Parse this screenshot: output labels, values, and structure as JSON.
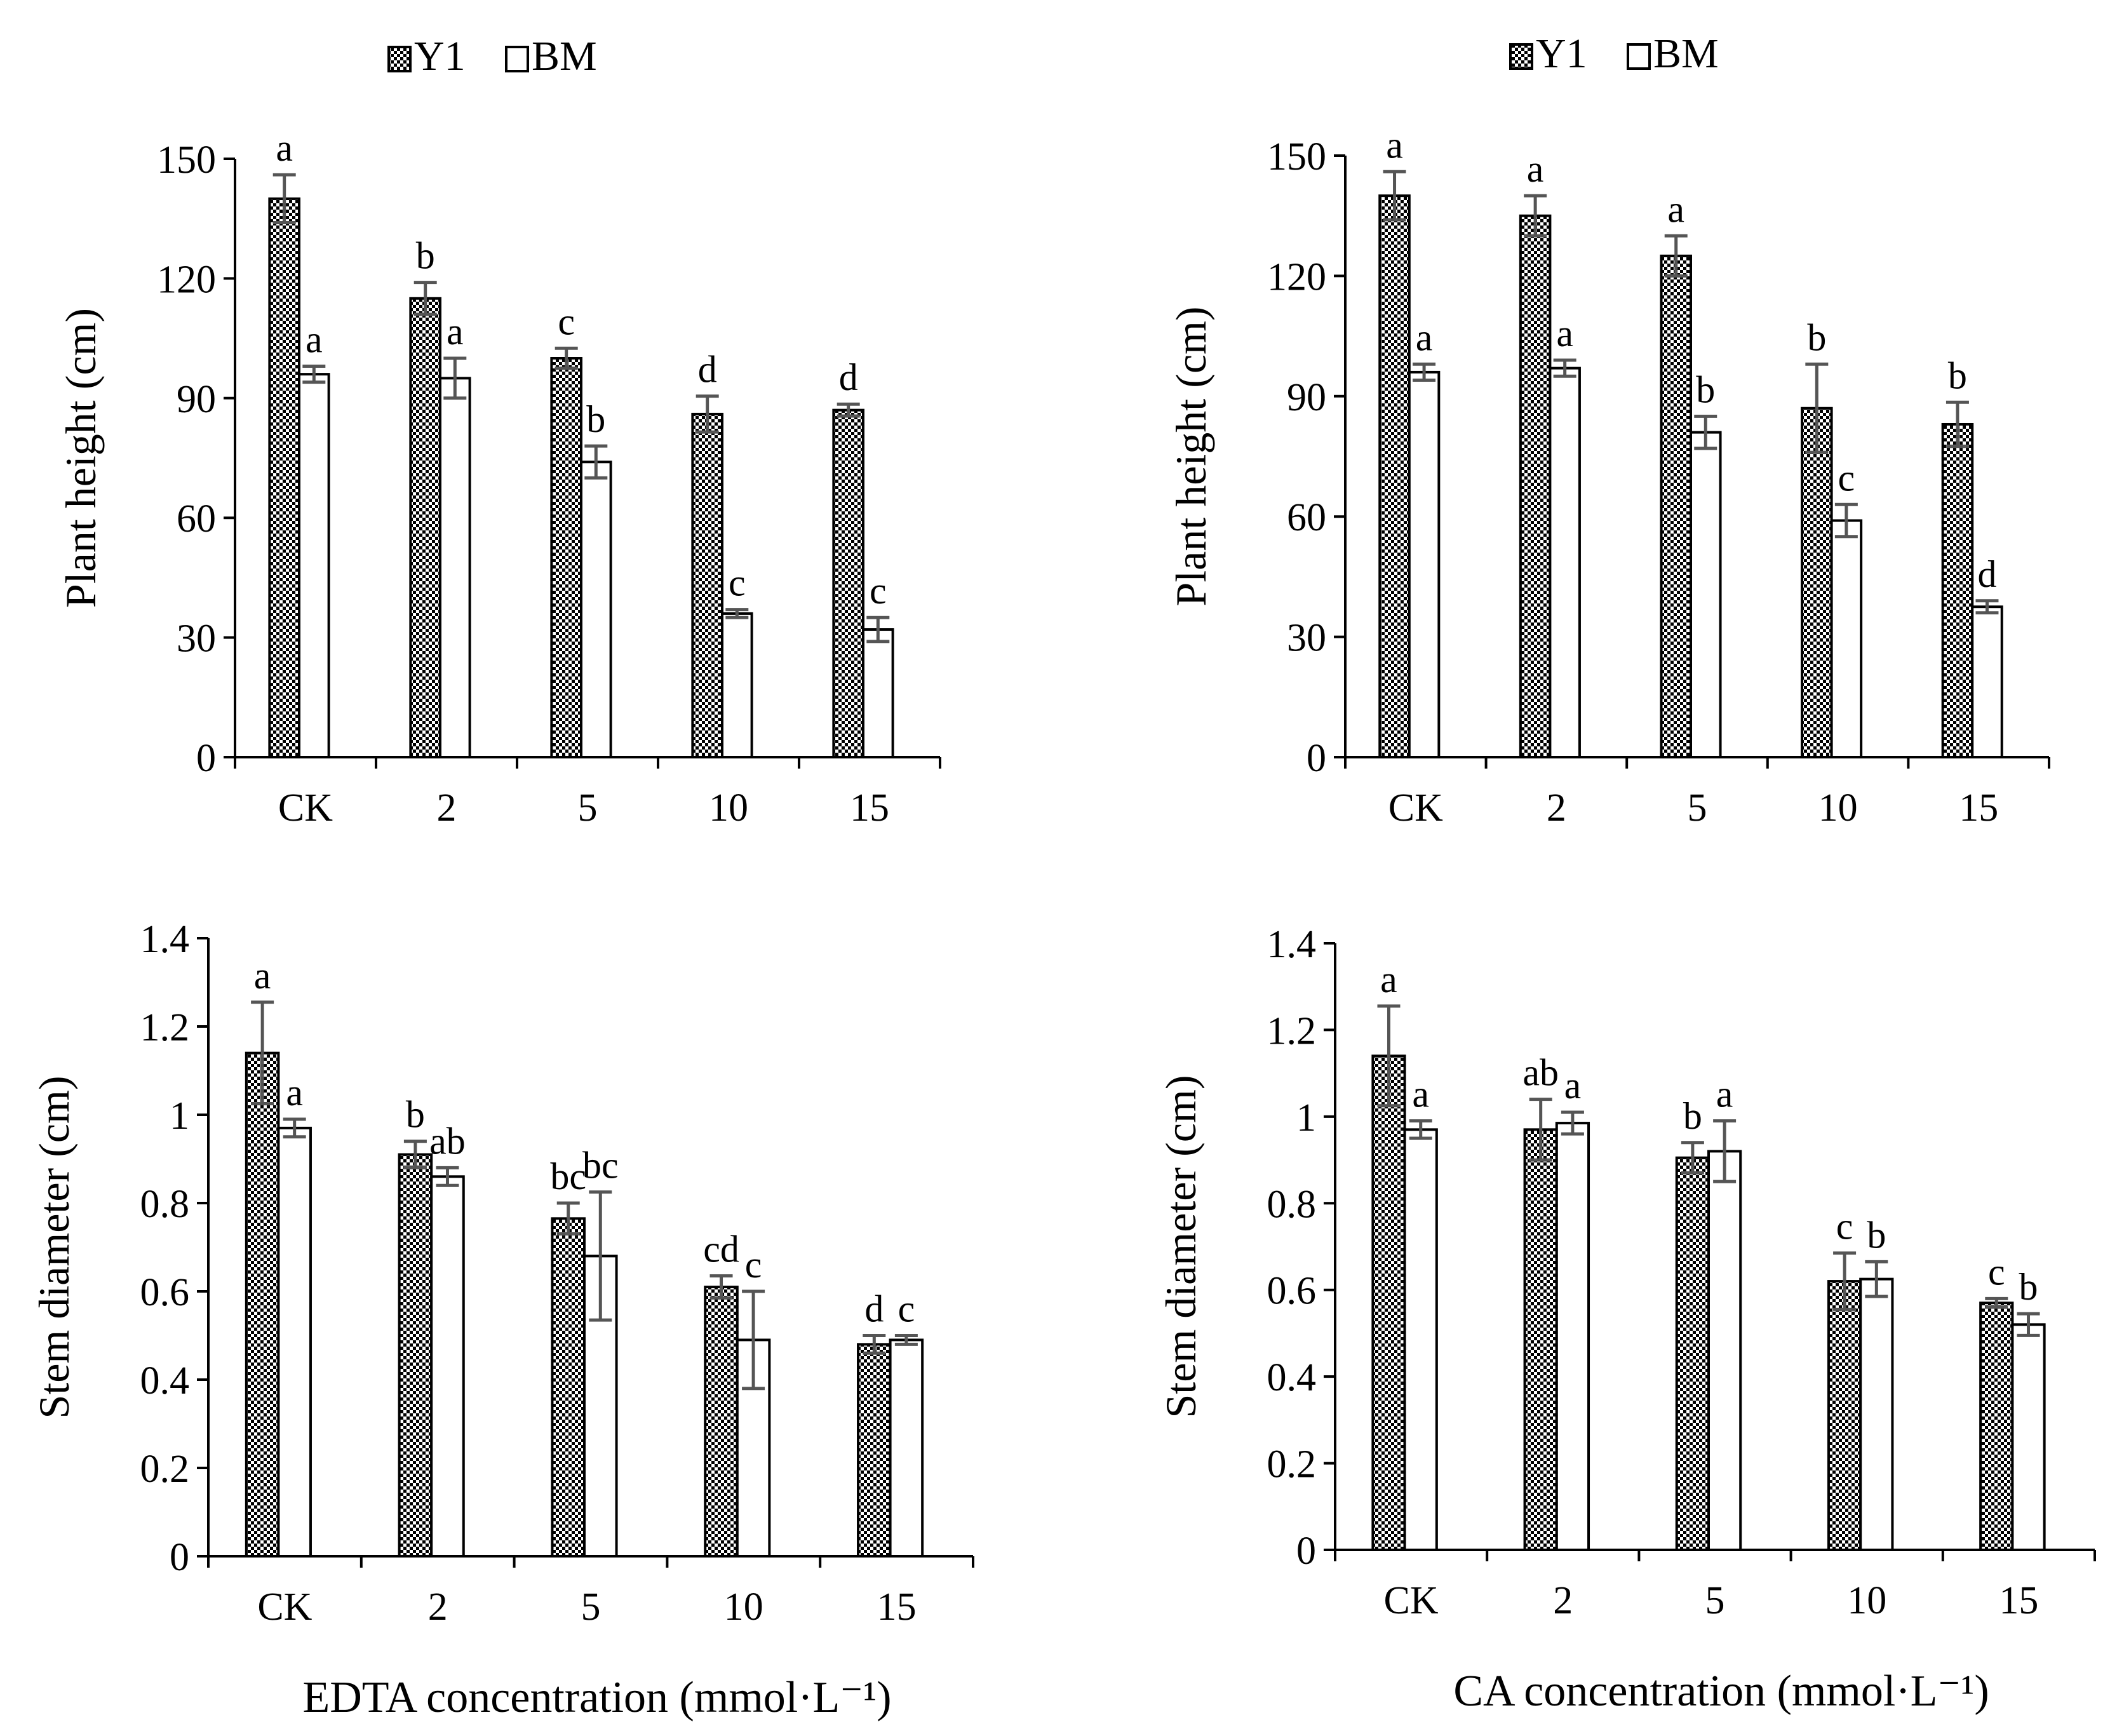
{
  "legend": {
    "series": [
      {
        "name": "Y1",
        "pattern": "dotted"
      },
      {
        "name": "BM",
        "pattern": "white"
      }
    ]
  },
  "colors": {
    "bar_edge": "#000000",
    "error_bar": "#555555",
    "dot_fill": "#000000",
    "background": "#ffffff"
  },
  "chart_data": [
    {
      "id": "edta-height",
      "type": "bar",
      "categories": [
        "CK",
        "2",
        "5",
        "10",
        "15"
      ],
      "ylabel": "Plant height  (cm)",
      "xlabel": "",
      "ylim": [
        0,
        150
      ],
      "yticks": [
        0,
        30,
        60,
        90,
        120,
        150
      ],
      "ytick_labels": [
        "0",
        "30",
        "60",
        "90",
        "120",
        "150"
      ],
      "series": [
        {
          "name": "Y1",
          "values": [
            140,
            115,
            100,
            86,
            87
          ],
          "errors": [
            6,
            4,
            2.5,
            4.5,
            1.5
          ],
          "labels": [
            "a",
            "b",
            "c",
            "d",
            "d"
          ]
        },
        {
          "name": "BM",
          "values": [
            96,
            95,
            74,
            36,
            32
          ],
          "errors": [
            2,
            5,
            4,
            1,
            3
          ],
          "labels": [
            "a",
            "a",
            "b",
            "c",
            "c"
          ]
        }
      ]
    },
    {
      "id": "ca-height",
      "type": "bar",
      "categories": [
        "CK",
        "2",
        "5",
        "10",
        "15"
      ],
      "ylabel": "Plant height (cm)",
      "xlabel": "",
      "ylim": [
        0,
        150
      ],
      "yticks": [
        0,
        30,
        60,
        90,
        120,
        150
      ],
      "ytick_labels": [
        "0",
        "30",
        "60",
        "90",
        "120",
        "150"
      ],
      "series": [
        {
          "name": "Y1",
          "values": [
            140,
            135,
            125,
            87,
            83
          ],
          "errors": [
            6,
            5,
            5,
            11,
            5.5
          ],
          "labels": [
            "a",
            "a",
            "a",
            "b",
            "b"
          ]
        },
        {
          "name": "BM",
          "values": [
            96,
            97,
            81,
            59,
            37.5
          ],
          "errors": [
            2,
            2,
            4,
            4,
            1.5
          ],
          "labels": [
            "a",
            "a",
            "b",
            "c",
            "d"
          ]
        }
      ]
    },
    {
      "id": "edta-diameter",
      "type": "bar",
      "categories": [
        "CK",
        "2",
        "5",
        "10",
        "15"
      ],
      "ylabel": "Stem diameter (cm)",
      "xlabel": "EDTA  concentration  (mmol·L⁻¹)",
      "ylim": [
        0,
        1.4
      ],
      "yticks": [
        0,
        0.2,
        0.4,
        0.6,
        0.8,
        1.0,
        1.2,
        1.4
      ],
      "ytick_labels": [
        "0",
        "0.2",
        "0.4",
        "0.6",
        "0.8",
        "1",
        "1.2",
        "1.4"
      ],
      "series": [
        {
          "name": "Y1",
          "values": [
            1.14,
            0.91,
            0.765,
            0.61,
            0.48
          ],
          "errors": [
            0.115,
            0.03,
            0.035,
            0.025,
            0.02
          ],
          "labels": [
            "a",
            "b",
            "bc",
            "cd",
            "d"
          ]
        },
        {
          "name": "BM",
          "values": [
            0.97,
            0.86,
            0.68,
            0.49,
            0.49
          ],
          "errors": [
            0.02,
            0.02,
            0.145,
            0.11,
            0.01
          ],
          "labels": [
            "a",
            "ab",
            "bc",
            "c",
            "c"
          ]
        }
      ]
    },
    {
      "id": "ca-diameter",
      "type": "bar",
      "categories": [
        "CK",
        "2",
        "5",
        "10",
        "15"
      ],
      "ylabel": "Stem diameter (cm)",
      "xlabel": "CA concentration  (mmol·L⁻¹)",
      "ylim": [
        0,
        1.4
      ],
      "yticks": [
        0,
        0.2,
        0.4,
        0.6,
        0.8,
        1.0,
        1.2,
        1.4
      ],
      "ytick_labels": [
        "0",
        "0.2",
        "0.4",
        "0.6",
        "0.8",
        "1",
        "1.2",
        "1.4"
      ],
      "series": [
        {
          "name": "Y1",
          "values": [
            1.14,
            0.97,
            0.905,
            0.62,
            0.57
          ],
          "errors": [
            0.115,
            0.07,
            0.035,
            0.065,
            0.01
          ],
          "labels": [
            "a",
            "ab",
            "b",
            "c",
            "c"
          ]
        },
        {
          "name": "BM",
          "values": [
            0.97,
            0.985,
            0.92,
            0.625,
            0.52
          ],
          "errors": [
            0.02,
            0.025,
            0.07,
            0.04,
            0.025
          ],
          "labels": [
            "a",
            "a",
            "a",
            "b",
            "b"
          ]
        }
      ]
    }
  ]
}
